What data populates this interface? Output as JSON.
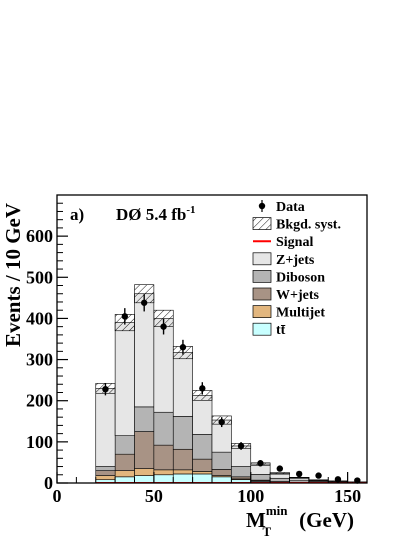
{
  "chart_data": {
    "type": "bar",
    "stacked": true,
    "panel_label": "a)",
    "experiment": "DØ 5.4 fb",
    "experiment_sup": "-1",
    "xlabel": "M",
    "xlabel_sup": "min",
    "xlabel_sub": "T",
    "xlabel_unit": "(GeV)",
    "ylabel": "Events / 10 GeV",
    "xlim": [
      0,
      160
    ],
    "ylim": [
      0,
      700
    ],
    "xticks": [
      0,
      50,
      100,
      150
    ],
    "yticks": [
      0,
      100,
      200,
      300,
      400,
      500,
      600
    ],
    "bin_edges": [
      20,
      30,
      40,
      50,
      60,
      70,
      80,
      90,
      100,
      110,
      120,
      130,
      140,
      150,
      160
    ],
    "series": [
      {
        "name": "tt̄",
        "color": "#c8ffff",
        "values": [
          8,
          15,
          18,
          20,
          22,
          22,
          15,
          8,
          4,
          2,
          1,
          0.5,
          0.3,
          0.2
        ]
      },
      {
        "name": "Multijet",
        "color": "#e2b67e",
        "values": [
          10,
          15,
          17,
          12,
          10,
          6,
          3,
          2,
          1,
          0.5,
          0.3,
          0.2,
          0.1,
          0.1
        ]
      },
      {
        "name": "W+jets",
        "color": "#a89385",
        "values": [
          12,
          40,
          90,
          60,
          50,
          30,
          15,
          5,
          2,
          1,
          0.5,
          0.3,
          0.2,
          0.1
        ]
      },
      {
        "name": "Diboson",
        "color": "#b4b4b4",
        "values": [
          10,
          45,
          60,
          80,
          80,
          60,
          42,
          25,
          14,
          8,
          5,
          3,
          2,
          1
        ]
      },
      {
        "name": "Z+jets",
        "color": "#e6e6e6",
        "values": [
          190,
          275,
          275,
          228,
          155,
          95,
          78,
          50,
          25,
          12,
          6,
          3,
          2,
          1
        ]
      },
      {
        "name": "Signal",
        "color": "#ff0000",
        "values": [
          0.5,
          0.5,
          0.5,
          0.5,
          0.5,
          0.5,
          0.5,
          0.5,
          0.5,
          0.5,
          0.5,
          0.5,
          0.5,
          0.5
        ]
      }
    ],
    "syst_total": [
      230,
      390,
      460,
      400,
      317,
      213,
      153,
      90,
      46,
      23.5,
      12.8,
      7,
      4.6,
      2.4
    ],
    "syst_band": [
      12,
      20,
      22,
      20,
      15,
      12,
      10,
      6,
      3,
      2,
      1,
      0.8,
      0.5,
      0.3
    ],
    "data": {
      "name": "Data",
      "x": [
        25,
        35,
        45,
        55,
        65,
        75,
        85,
        95,
        105,
        115,
        125,
        135,
        145,
        155
      ],
      "y": [
        228,
        405,
        438,
        380,
        330,
        230,
        148,
        90,
        48,
        35,
        22,
        18,
        9,
        6
      ],
      "err": [
        15,
        20,
        21,
        19,
        18,
        15,
        12,
        9.5,
        7,
        6,
        4.7,
        4.2,
        3,
        2.4
      ]
    },
    "legend": {
      "placement": "top-right",
      "entries": [
        {
          "label": "Data",
          "style": "marker"
        },
        {
          "label": "Bkgd. syst.",
          "style": "hatch"
        },
        {
          "label": "Signal",
          "style": "line",
          "color": "#ff0000"
        },
        {
          "label": "Z+jets",
          "style": "box",
          "color": "#e6e6e6"
        },
        {
          "label": "Diboson",
          "style": "box",
          "color": "#b4b4b4"
        },
        {
          "label": "W+jets",
          "style": "box",
          "color": "#a89385"
        },
        {
          "label": "Multijet",
          "style": "box",
          "color": "#e2b67e"
        },
        {
          "label": "tt̄",
          "style": "box",
          "color": "#c8ffff"
        }
      ]
    }
  }
}
